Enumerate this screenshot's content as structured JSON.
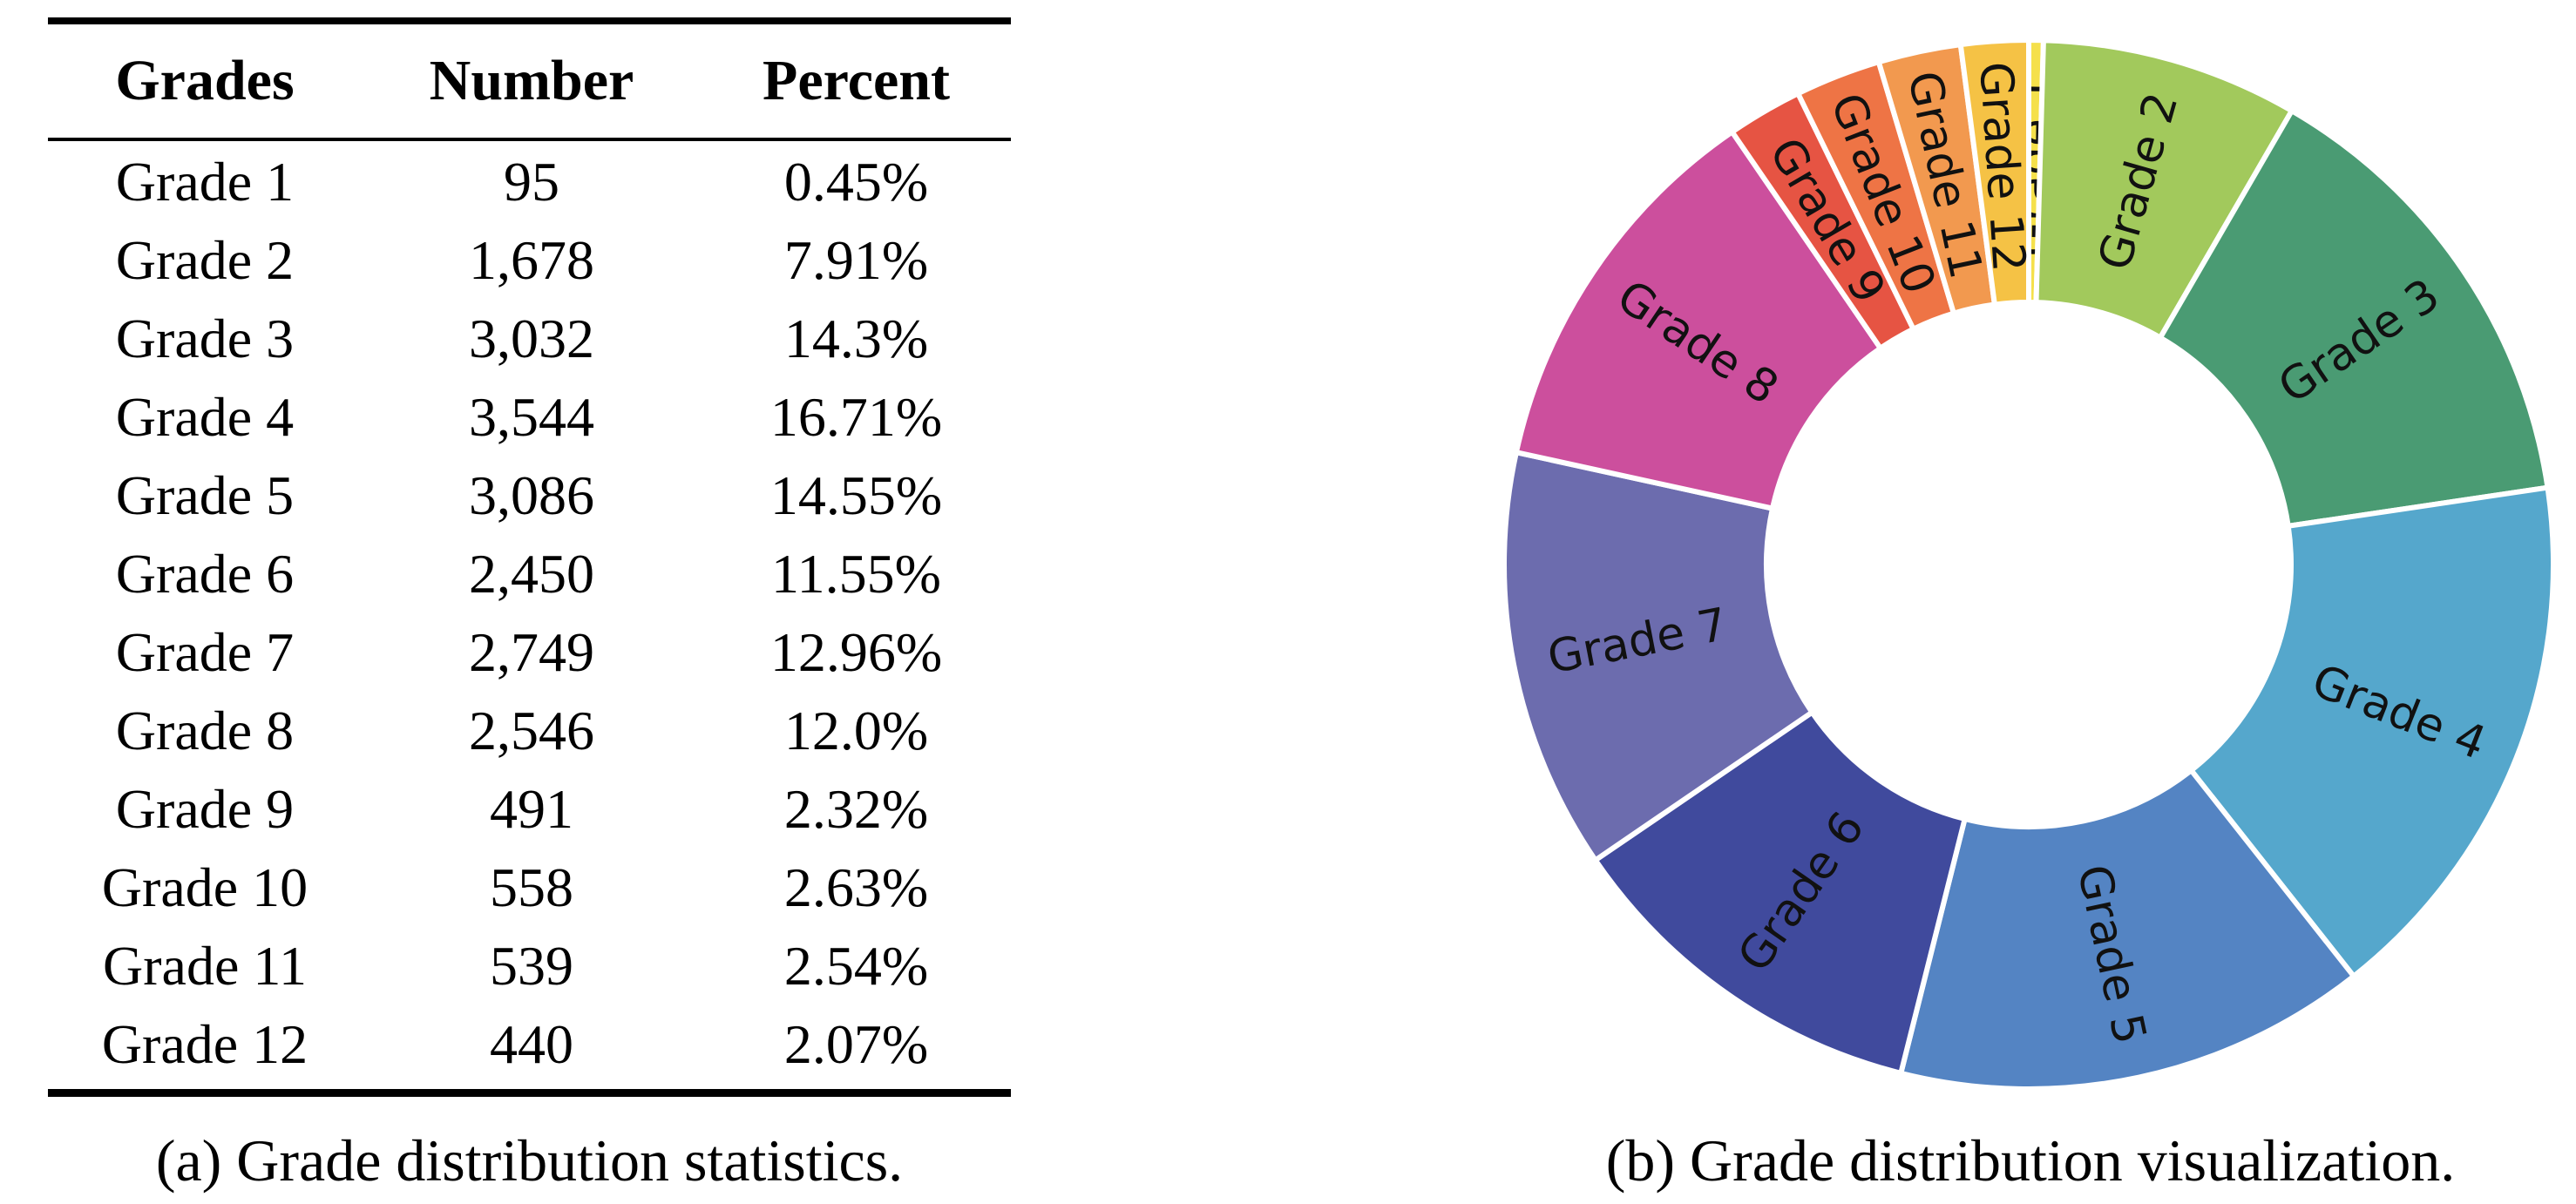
{
  "figure": {
    "table_caption": "(a) Grade distribution statistics.",
    "chart_caption": "(b) Grade distribution visualization."
  },
  "table": {
    "columns": [
      "Grades",
      "Number",
      "Percent"
    ],
    "rows": [
      {
        "grade": "Grade 1",
        "number": "95",
        "percent": "0.45%"
      },
      {
        "grade": "Grade 2",
        "number": "1,678",
        "percent": "7.91%"
      },
      {
        "grade": "Grade 3",
        "number": "3,032",
        "percent": "14.3%"
      },
      {
        "grade": "Grade 4",
        "number": "3,544",
        "percent": "16.71%"
      },
      {
        "grade": "Grade 5",
        "number": "3,086",
        "percent": "14.55%"
      },
      {
        "grade": "Grade 6",
        "number": "2,450",
        "percent": "11.55%"
      },
      {
        "grade": "Grade 7",
        "number": "2,749",
        "percent": "12.96%"
      },
      {
        "grade": "Grade 8",
        "number": "2,546",
        "percent": "12.0%"
      },
      {
        "grade": "Grade 9",
        "number": "491",
        "percent": "2.32%"
      },
      {
        "grade": "Grade 10",
        "number": "558",
        "percent": "2.63%"
      },
      {
        "grade": "Grade 11",
        "number": "539",
        "percent": "2.54%"
      },
      {
        "grade": "Grade 12",
        "number": "440",
        "percent": "2.07%"
      }
    ]
  },
  "chart_data": {
    "type": "pie",
    "subtype": "donut",
    "title": "",
    "labels": [
      "Grade 1",
      "Grade 2",
      "Grade 3",
      "Grade 4",
      "Grade 5",
      "Grade 6",
      "Grade 7",
      "Grade 8",
      "Grade 9",
      "Grade 10",
      "Grade 11",
      "Grade 12"
    ],
    "values": [
      95,
      1678,
      3032,
      3544,
      3086,
      2450,
      2749,
      2546,
      491,
      558,
      539,
      440
    ],
    "percents": [
      0.45,
      7.91,
      14.3,
      16.71,
      14.55,
      11.55,
      12.96,
      12.0,
      2.32,
      2.63,
      2.54,
      2.07
    ],
    "colors": [
      "#f5e04b",
      "#a2c95c",
      "#4a9b73",
      "#55a7cc",
      "#5484c3",
      "#404a9d",
      "#6c6cae",
      "#cc4f9d",
      "#e65443",
      "#ee7445",
      "#f2994f",
      "#f5c245"
    ],
    "start_angle_deg": 90,
    "direction": "clockwise",
    "donut_hole_ratio": 0.5,
    "label_position_ratio": 0.76,
    "gap_color": "#ffffff",
    "label_color": "#111111",
    "legend_position": "none",
    "labels_inside_wedges": true,
    "labels_rotated_radially": true
  }
}
